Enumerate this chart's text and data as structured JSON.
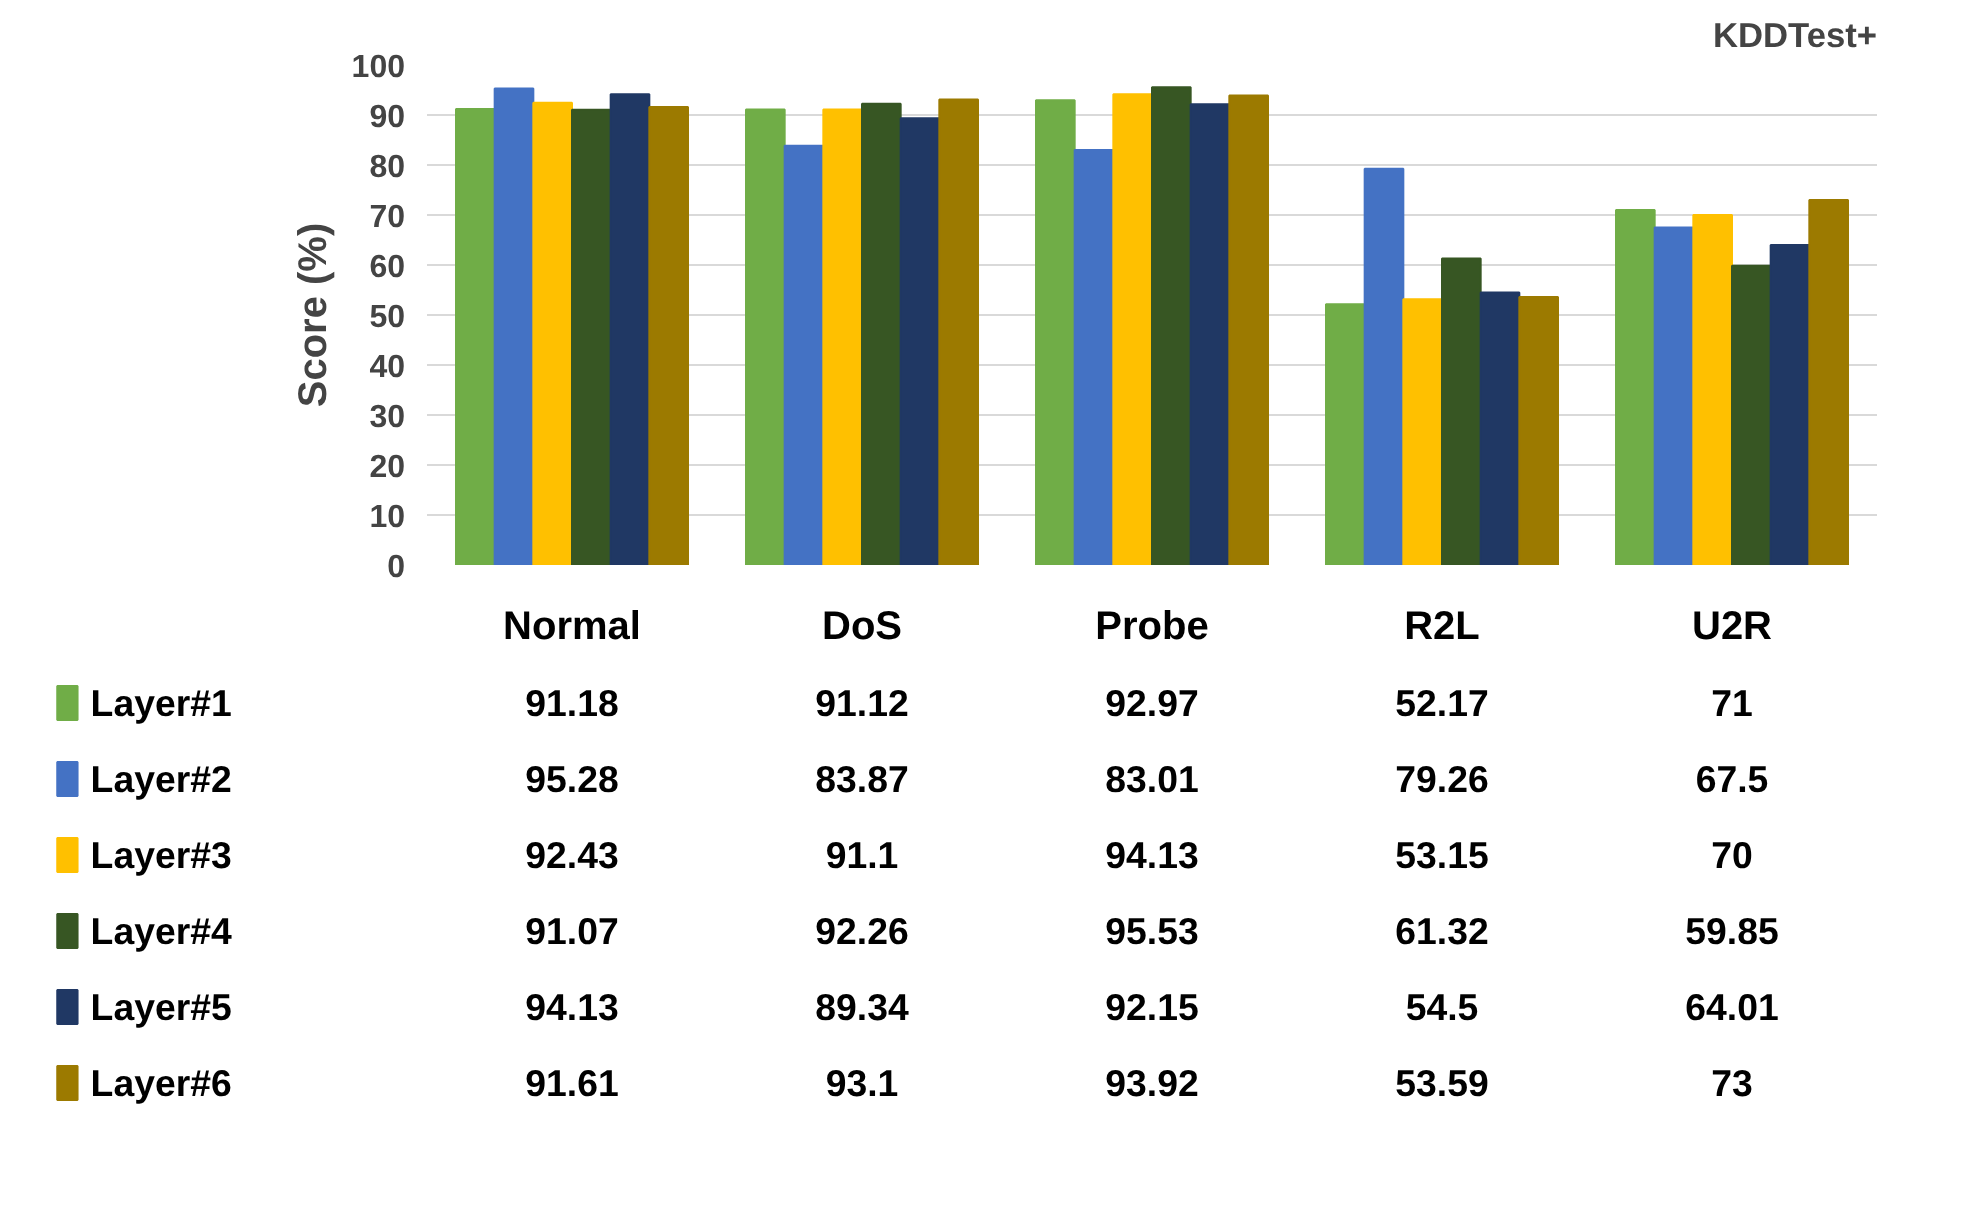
{
  "chart_data": {
    "type": "bar",
    "title": "KDDTest+",
    "ylabel": "Score (%)",
    "categories": [
      "Normal",
      "DoS",
      "Probe",
      "R2L",
      "U2R"
    ],
    "ylim": [
      0,
      100
    ],
    "yticks": [
      0,
      10,
      20,
      30,
      40,
      50,
      60,
      70,
      80,
      90,
      100
    ],
    "grid": "y",
    "legend": "bottom",
    "data_labels": true,
    "series": [
      {
        "name": "Layer#1",
        "color": "#70ad47",
        "values": [
          91.18,
          91.12,
          92.97,
          52.17,
          71
        ]
      },
      {
        "name": "Layer#2",
        "color": "#4472c4",
        "values": [
          95.28,
          83.87,
          83.01,
          79.26,
          67.5
        ]
      },
      {
        "name": "Layer#3",
        "color": "#ffc000",
        "values": [
          92.43,
          91.1,
          94.13,
          53.15,
          70
        ]
      },
      {
        "name": "Layer#4",
        "color": "#375623",
        "values": [
          91.07,
          92.26,
          95.53,
          61.32,
          59.85
        ]
      },
      {
        "name": "Layer#5",
        "color": "#203864",
        "values": [
          94.13,
          89.34,
          92.15,
          54.5,
          64.01
        ]
      },
      {
        "name": "Layer#6",
        "color": "#9c7a00",
        "values": [
          91.61,
          93.1,
          93.92,
          53.59,
          73
        ]
      }
    ]
  }
}
